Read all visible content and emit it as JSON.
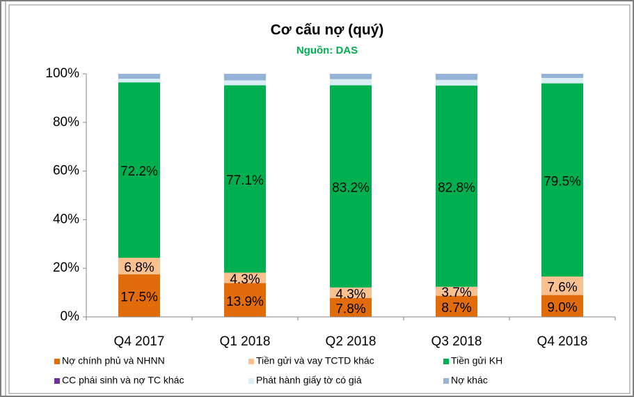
{
  "chart_data": {
    "type": "stacked_bar",
    "title": "Cơ cấu nợ (quý)",
    "subtitle": "Nguồn: DAS",
    "categories": [
      "Q4 2017",
      "Q1 2018",
      "Q2 2018",
      "Q3 2018",
      "Q4 2018"
    ],
    "ylim": [
      0,
      100
    ],
    "yticks": [
      {
        "value": 0,
        "label": "0%"
      },
      {
        "value": 20,
        "label": "20%"
      },
      {
        "value": 40,
        "label": "40%"
      },
      {
        "value": 60,
        "label": "60%"
      },
      {
        "value": 80,
        "label": "80%"
      },
      {
        "value": 100,
        "label": "100%"
      }
    ],
    "series": [
      {
        "name": "Nợ chính phủ và NHNN",
        "color": "#e36c0a",
        "values": [
          17.5,
          13.9,
          7.8,
          8.7,
          9.0
        ],
        "value_labels": [
          "17.5%",
          "13.9%",
          "7.8%",
          "8.7%",
          "9.0%"
        ]
      },
      {
        "name": "Tiền gửi và vay TCTD khác",
        "color": "#fac090",
        "values": [
          6.8,
          4.3,
          4.3,
          3.7,
          7.6
        ],
        "value_labels": [
          "6.8%",
          "4.3%",
          "4.3%",
          "3.7%",
          "7.6%"
        ]
      },
      {
        "name": "Tiền gửi KH",
        "color": "#00b050",
        "values": [
          72.2,
          77.1,
          83.2,
          82.8,
          79.5
        ],
        "value_labels": [
          "72.2%",
          "77.1%",
          "83.2%",
          "82.8%",
          "79.5%"
        ]
      },
      {
        "name": "CC phái sinh và nợ TC khác",
        "color": "#7030a0",
        "values": [
          0,
          0,
          0,
          0,
          0
        ]
      },
      {
        "name": "Phát hành giấy tờ có giá",
        "color": "#dbeef4",
        "values": [
          1.5,
          2.0,
          2.5,
          2.3,
          2.2
        ]
      },
      {
        "name": "Nợ khác",
        "color": "#95b3d7",
        "values": [
          2.0,
          2.7,
          2.2,
          2.5,
          1.7
        ]
      }
    ]
  }
}
